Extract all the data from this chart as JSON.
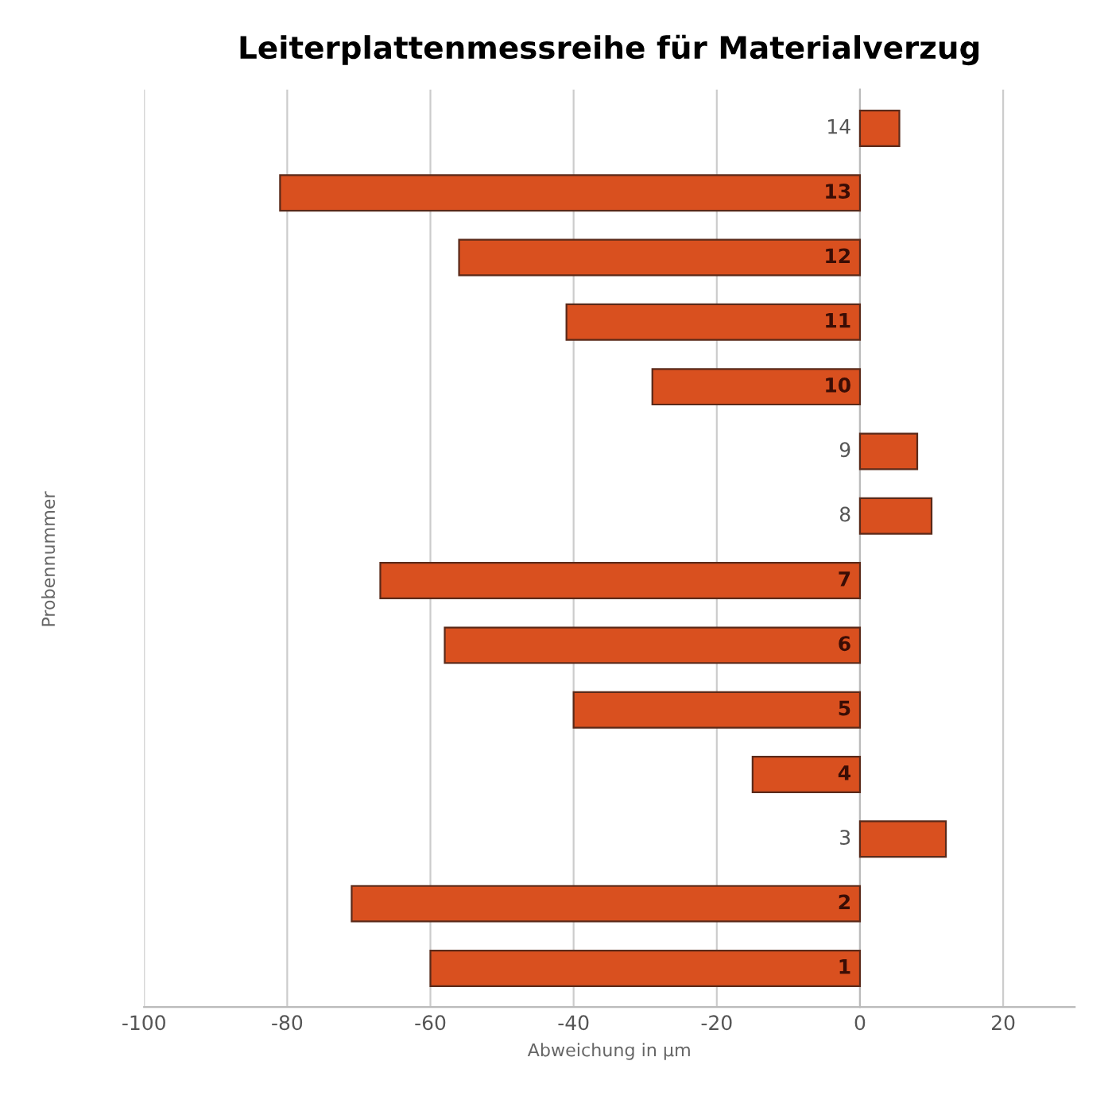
{
  "chart_data": {
    "type": "bar",
    "orientation": "horizontal",
    "title": "Leiterplattenmessreihe für Materialverzug",
    "xlabel": "Abweichung in µm",
    "ylabel": "Probennummer",
    "categories": [
      "14",
      "13",
      "12",
      "11",
      "10",
      "9",
      "8",
      "7",
      "6",
      "5",
      "4",
      "3",
      "2",
      "1"
    ],
    "values": [
      5.5,
      -81,
      -56,
      -41,
      -29,
      8,
      10,
      -67,
      -58,
      -40,
      -15,
      12,
      -71,
      -60
    ],
    "color": "#d9501f",
    "xlim": [
      -100,
      30
    ],
    "xticks": [
      -100,
      -80,
      -60,
      -40,
      -20,
      0,
      20
    ],
    "grid": "x"
  }
}
